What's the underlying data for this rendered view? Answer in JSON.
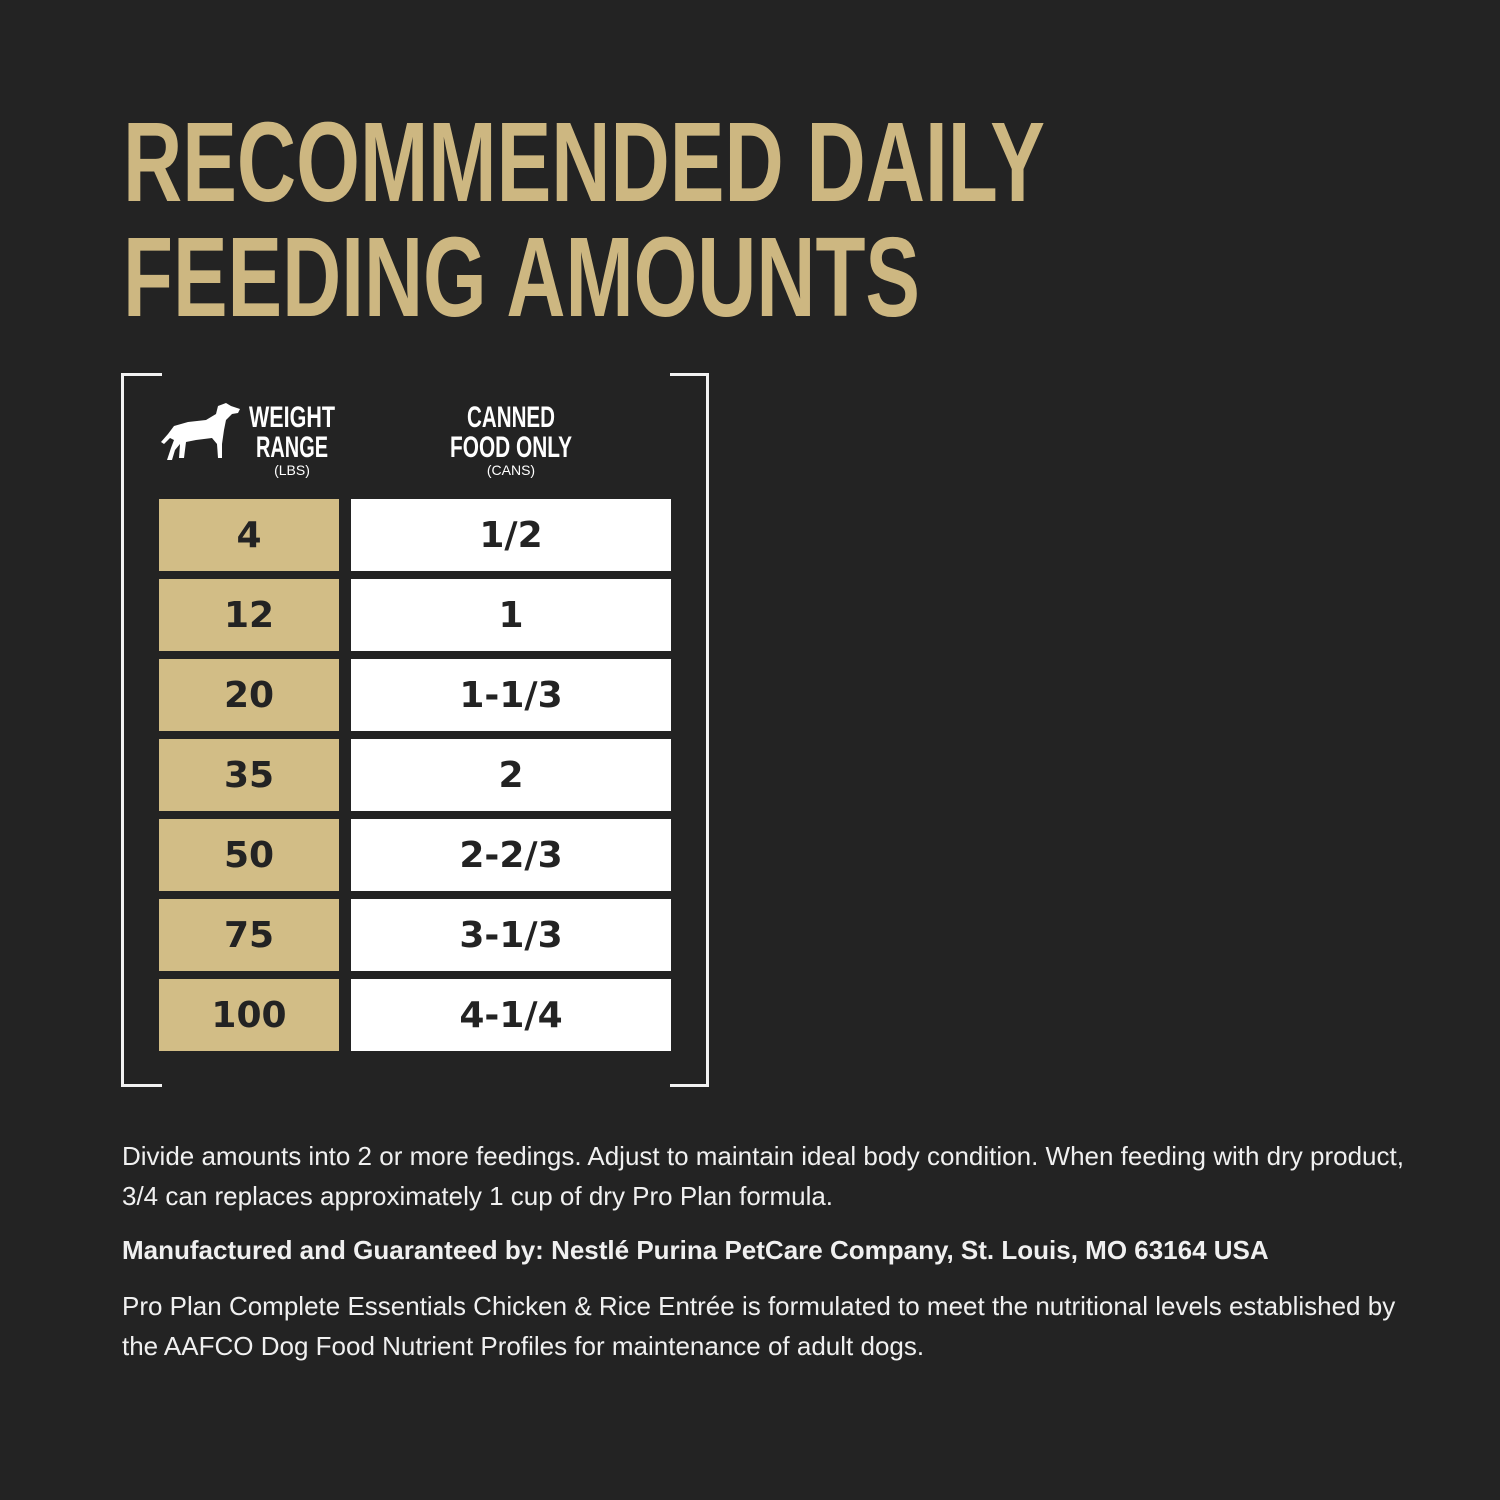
{
  "title": {
    "line1": "RECOMMENDED DAILY",
    "line2": "FEEDING AMOUNTS"
  },
  "colors": {
    "background": "#232323",
    "gold": "#d2bd86",
    "title": "#cdb781",
    "white": "#ffffff"
  },
  "table": {
    "icon": "dog-icon",
    "headers": {
      "weight": {
        "line1": "WEIGHT",
        "line2": "RANGE",
        "unit": "(LBS)"
      },
      "canned": {
        "line1": "CANNED",
        "line2": "FOOD ONLY",
        "unit": "(CANS)"
      }
    },
    "rows": [
      {
        "weight": "4",
        "cans": "1/2"
      },
      {
        "weight": "12",
        "cans": "1"
      },
      {
        "weight": "20",
        "cans": "1-1/3"
      },
      {
        "weight": "35",
        "cans": "2"
      },
      {
        "weight": "50",
        "cans": "2-2/3"
      },
      {
        "weight": "75",
        "cans": "3-1/3"
      },
      {
        "weight": "100",
        "cans": "4-1/4"
      }
    ]
  },
  "notes": {
    "instructions": "Divide amounts into 2 or more feedings. Adjust to maintain ideal body condition. When feeding with dry product, 3/4 can replaces approximately 1 cup of dry Pro Plan formula.",
    "manufacturer": "Manufactured and Guaranteed by: Nestlé Purina PetCare Company, St. Louis, MO 63164 USA",
    "aafco": "Pro Plan Complete Essentials Chicken & Rice Entrée is formulated to meet the nutritional levels established by the AAFCO Dog Food Nutrient Profiles for maintenance of adult dogs."
  }
}
